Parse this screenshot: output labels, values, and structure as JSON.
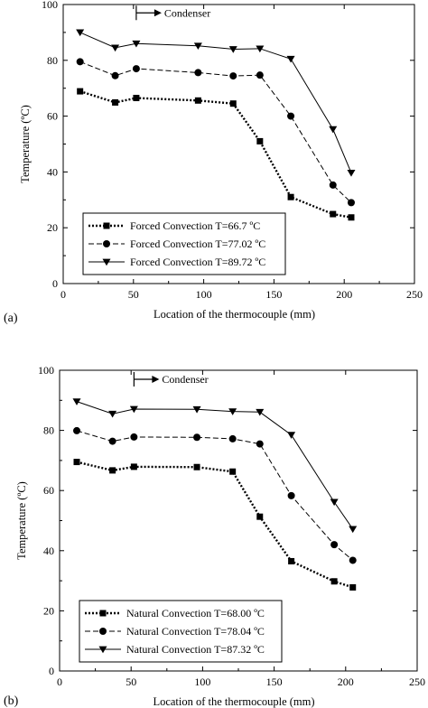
{
  "chart_data": [
    {
      "type": "line",
      "panel_label": "(a)",
      "xlabel": "Location of the thermocouple (mm)",
      "ylabel": "Temperature (ºC)",
      "xlim": [
        0,
        250
      ],
      "ylim": [
        0,
        100
      ],
      "xticks": [
        0,
        50,
        100,
        150,
        200,
        250
      ],
      "yticks": [
        0,
        20,
        40,
        60,
        80,
        100
      ],
      "grid": false,
      "legend_position": "bottom-left",
      "annotation": {
        "text": "Condenser",
        "x": 52,
        "y": 97
      },
      "series": [
        {
          "name": "Forced Convection T=66.7 ºC",
          "marker": "square",
          "dash": "dotted",
          "x": [
            12,
            37,
            52,
            96,
            121,
            140,
            162,
            192,
            205
          ],
          "y": [
            68.9,
            64.9,
            66.5,
            65.6,
            64.5,
            51,
            31,
            24.9,
            23.7
          ]
        },
        {
          "name": "Forced Convection T=77.02 ºC",
          "marker": "circle",
          "dash": "dashed",
          "x": [
            12,
            37,
            52,
            96,
            121,
            140,
            162,
            192,
            205
          ],
          "y": [
            79.5,
            74.5,
            77,
            75.6,
            74.4,
            74.7,
            60,
            35.3,
            29
          ]
        },
        {
          "name": "Forced Convection T=89.72 ºC",
          "marker": "triangle-down",
          "dash": "solid",
          "x": [
            12,
            37,
            52,
            96,
            121,
            140,
            162,
            192,
            205
          ],
          "y": [
            90,
            84.5,
            86,
            85.2,
            84,
            84.2,
            80.5,
            55.3,
            39.7
          ]
        }
      ]
    },
    {
      "type": "line",
      "panel_label": "(b)",
      "xlabel": "Location of the thermocouple (mm)",
      "ylabel": "Temperature (ºC)",
      "xlim": [
        0,
        250
      ],
      "ylim": [
        0,
        100
      ],
      "xticks": [
        0,
        50,
        100,
        150,
        200,
        250
      ],
      "yticks": [
        0,
        20,
        40,
        60,
        80,
        100
      ],
      "grid": false,
      "legend_position": "bottom-left",
      "annotation": {
        "text": "Condenser",
        "x": 52,
        "y": 97
      },
      "series": [
        {
          "name": "Natural Convection T=68.00 ºC",
          "marker": "square",
          "dash": "dotted",
          "x": [
            12,
            37,
            52,
            96,
            121,
            140,
            162,
            192,
            205
          ],
          "y": [
            69.5,
            66.7,
            67.9,
            67.8,
            66.3,
            51.3,
            36.5,
            29.8,
            27.8
          ]
        },
        {
          "name": "Natural Convection T=78.04 ºC",
          "marker": "circle",
          "dash": "dashed",
          "x": [
            12,
            37,
            52,
            96,
            121,
            140,
            162,
            192,
            205
          ],
          "y": [
            79.9,
            76.4,
            77.8,
            77.7,
            77.2,
            75.5,
            58.3,
            42,
            36.8
          ]
        },
        {
          "name": "Natural Convection T=87.32 ºC",
          "marker": "triangle-down",
          "dash": "solid",
          "x": [
            12,
            37,
            52,
            96,
            121,
            140,
            162,
            192,
            205
          ],
          "y": [
            89.6,
            85.5,
            87.1,
            87,
            86.3,
            86.1,
            78.5,
            56.2,
            47.2
          ]
        }
      ]
    }
  ]
}
